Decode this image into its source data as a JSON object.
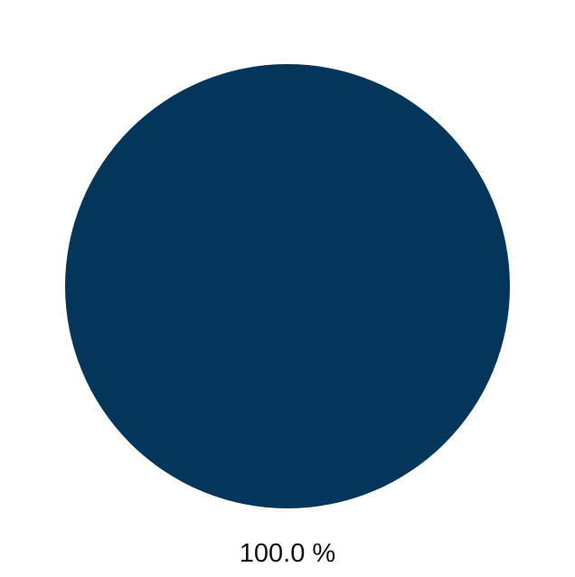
{
  "chart_data": {
    "type": "pie",
    "title": "",
    "slices": [
      {
        "value": 100.0,
        "label": "100.0 %",
        "color": "#03365a"
      }
    ],
    "legend": "none"
  }
}
